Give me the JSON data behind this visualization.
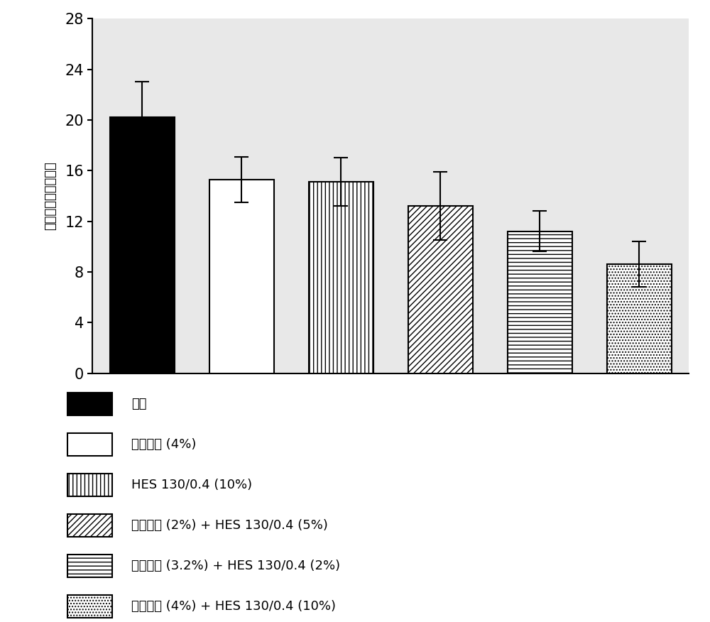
{
  "values": [
    20.2,
    15.3,
    15.1,
    13.2,
    11.2,
    8.6
  ],
  "errors": [
    2.8,
    1.8,
    1.9,
    2.7,
    1.6,
    1.8
  ],
  "ylabel": "腹膜癌指数（全部）",
  "ylim": [
    0,
    28
  ],
  "yticks": [
    0,
    4,
    8,
    12,
    16,
    20,
    24,
    28
  ],
  "legend_labels": [
    "对照",
    "艾考糖精 (4%)",
    "HES 130/0.4 (10%)",
    "艾考糖精 (2%) + HES 130/0.4 (5%)",
    "艾考糖精 (3.2%) + HES 130/0.4 (2%)",
    "艾考糖精 (4%) + HES 130/0.4 (10%)"
  ],
  "bar_edge_color": "#000000",
  "error_color": "#000000",
  "bar_width": 0.65,
  "face_colors": [
    "black",
    "white",
    "white",
    "white",
    "white",
    "white"
  ],
  "hatch_patterns": [
    "",
    "",
    "|||",
    "////",
    "---",
    "...."
  ],
  "legend_hatches": [
    "",
    "",
    "|||",
    "////",
    "---",
    "...."
  ],
  "legend_facecolors": [
    "black",
    "white",
    "white",
    "white",
    "white",
    "white"
  ]
}
